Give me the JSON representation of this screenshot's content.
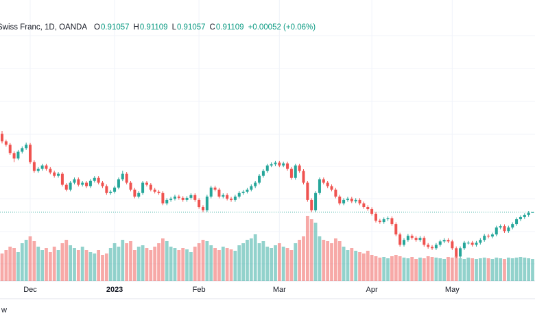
{
  "chart_data": {
    "type": "candlestick",
    "title": "Swiss Franc, 1D, OANDA",
    "header": [
      {
        "label": "O",
        "value": "0.91057"
      },
      {
        "label": "H",
        "value": "0.91109"
      },
      {
        "label": "L",
        "value": "0.91057"
      },
      {
        "label": "C",
        "value": "0.91109"
      }
    ],
    "change": "+0.00052 (+0.06%)",
    "footer": "w",
    "up_color": "#26a69a",
    "down_color": "#ef5350",
    "categories": [
      null,
      null,
      null,
      null,
      null,
      null,
      null,
      "Dec",
      null,
      null,
      null,
      null,
      null,
      null,
      null,
      null,
      null,
      null,
      null,
      null,
      null,
      null,
      null,
      null,
      null,
      null,
      null,
      null,
      "2023",
      null,
      null,
      null,
      null,
      null,
      null,
      null,
      null,
      null,
      null,
      null,
      null,
      null,
      null,
      null,
      null,
      null,
      null,
      null,
      null,
      "Feb",
      null,
      null,
      null,
      null,
      null,
      null,
      null,
      null,
      null,
      null,
      null,
      null,
      null,
      null,
      null,
      null,
      null,
      null,
      null,
      "Mar",
      null,
      null,
      null,
      null,
      null,
      null,
      null,
      null,
      null,
      null,
      null,
      null,
      null,
      null,
      null,
      null,
      null,
      null,
      null,
      null,
      null,
      null,
      "Apr",
      null,
      null,
      null,
      null,
      null,
      null,
      null,
      null,
      null,
      null,
      null,
      null,
      null,
      null,
      null,
      null,
      null,
      null,
      null,
      "May",
      null,
      null,
      null,
      null,
      null,
      null,
      null,
      null,
      null,
      null,
      null,
      null,
      null,
      null,
      null,
      null,
      null,
      null,
      null,
      null
    ],
    "ohlc": [
      [
        0.964,
        0.966,
        0.9575,
        0.9589
      ],
      [
        0.9589,
        0.9601,
        0.9554,
        0.9566
      ],
      [
        0.9566,
        0.9578,
        0.9498,
        0.951
      ],
      [
        0.951,
        0.9522,
        0.9449,
        0.9473
      ],
      [
        0.9473,
        0.9531,
        0.9461,
        0.9519
      ],
      [
        0.9519,
        0.9555,
        0.9507,
        0.9543
      ],
      [
        0.9543,
        0.958,
        0.9531,
        0.9566
      ],
      [
        0.9566,
        0.9578,
        0.9437,
        0.9449
      ],
      [
        0.9449,
        0.9461,
        0.9377,
        0.9389
      ],
      [
        0.9389,
        0.9415,
        0.9377,
        0.9403
      ],
      [
        0.9403,
        0.9438,
        0.9391,
        0.9426
      ],
      [
        0.9426,
        0.9438,
        0.9391,
        0.9403
      ],
      [
        0.9403,
        0.9415,
        0.9367,
        0.9379
      ],
      [
        0.9379,
        0.9391,
        0.9344,
        0.9356
      ],
      [
        0.9356,
        0.9382,
        0.9344,
        0.937
      ],
      [
        0.937,
        0.9382,
        0.9284,
        0.9296
      ],
      [
        0.9296,
        0.9308,
        0.9251,
        0.9263
      ],
      [
        0.9263,
        0.9322,
        0.9251,
        0.931
      ],
      [
        0.931,
        0.9345,
        0.9298,
        0.9333
      ],
      [
        0.9333,
        0.9345,
        0.9284,
        0.9296
      ],
      [
        0.9296,
        0.9322,
        0.9284,
        0.931
      ],
      [
        0.931,
        0.9322,
        0.9274,
        0.9286
      ],
      [
        0.9286,
        0.9335,
        0.9274,
        0.9323
      ],
      [
        0.9323,
        0.9354,
        0.9311,
        0.9342
      ],
      [
        0.9342,
        0.9354,
        0.9298,
        0.931
      ],
      [
        0.931,
        0.9322,
        0.9274,
        0.9286
      ],
      [
        0.9286,
        0.9298,
        0.9228,
        0.924
      ],
      [
        0.924,
        0.9261,
        0.9228,
        0.9249
      ],
      [
        0.9249,
        0.9289,
        0.9237,
        0.9277
      ],
      [
        0.9277,
        0.9345,
        0.9265,
        0.9333
      ],
      [
        0.9333,
        0.939,
        0.9321,
        0.937
      ],
      [
        0.937,
        0.9382,
        0.9298,
        0.931
      ],
      [
        0.931,
        0.9322,
        0.9251,
        0.9263
      ],
      [
        0.9263,
        0.9275,
        0.9204,
        0.9216
      ],
      [
        0.9216,
        0.9252,
        0.9204,
        0.924
      ],
      [
        0.924,
        0.9322,
        0.9228,
        0.931
      ],
      [
        0.931,
        0.9322,
        0.9284,
        0.9296
      ],
      [
        0.9296,
        0.9308,
        0.9251,
        0.9263
      ],
      [
        0.9263,
        0.9275,
        0.9237,
        0.9249
      ],
      [
        0.9249,
        0.9261,
        0.9228,
        0.924
      ],
      [
        0.924,
        0.9252,
        0.9158,
        0.917
      ],
      [
        0.917,
        0.9205,
        0.9158,
        0.9193
      ],
      [
        0.9193,
        0.9214,
        0.9181,
        0.9202
      ],
      [
        0.9202,
        0.9228,
        0.919,
        0.9216
      ],
      [
        0.9216,
        0.9228,
        0.9195,
        0.9207
      ],
      [
        0.9207,
        0.9219,
        0.9181,
        0.9193
      ],
      [
        0.9193,
        0.9219,
        0.9181,
        0.9207
      ],
      [
        0.9207,
        0.9238,
        0.9195,
        0.9226
      ],
      [
        0.9226,
        0.9238,
        0.9181,
        0.9193
      ],
      [
        0.9193,
        0.9205,
        0.9134,
        0.9146
      ],
      [
        0.9146,
        0.9158,
        0.9111,
        0.9123
      ],
      [
        0.9123,
        0.9228,
        0.9111,
        0.9216
      ],
      [
        0.9216,
        0.9289,
        0.9204,
        0.9277
      ],
      [
        0.9277,
        0.9289,
        0.9251,
        0.9263
      ],
      [
        0.9263,
        0.9275,
        0.9204,
        0.9216
      ],
      [
        0.9216,
        0.9238,
        0.9204,
        0.9226
      ],
      [
        0.9226,
        0.9238,
        0.919,
        0.9202
      ],
      [
        0.9202,
        0.9214,
        0.9181,
        0.9193
      ],
      [
        0.9193,
        0.9228,
        0.9181,
        0.9216
      ],
      [
        0.9216,
        0.9252,
        0.9204,
        0.924
      ],
      [
        0.924,
        0.9261,
        0.9228,
        0.9249
      ],
      [
        0.9249,
        0.9275,
        0.9237,
        0.9263
      ],
      [
        0.9263,
        0.9298,
        0.9251,
        0.9286
      ],
      [
        0.9286,
        0.9322,
        0.9274,
        0.931
      ],
      [
        0.931,
        0.9368,
        0.9298,
        0.9356
      ],
      [
        0.9356,
        0.9401,
        0.9344,
        0.9389
      ],
      [
        0.9389,
        0.9438,
        0.9377,
        0.9426
      ],
      [
        0.9426,
        0.9447,
        0.9414,
        0.9435
      ],
      [
        0.9435,
        0.9457,
        0.9423,
        0.9445
      ],
      [
        0.9445,
        0.9457,
        0.9414,
        0.9426
      ],
      [
        0.9426,
        0.9452,
        0.9414,
        0.944
      ],
      [
        0.944,
        0.9452,
        0.9391,
        0.9403
      ],
      [
        0.9403,
        0.9415,
        0.933,
        0.9342
      ],
      [
        0.9342,
        0.9438,
        0.933,
        0.9426
      ],
      [
        0.9426,
        0.9438,
        0.9377,
        0.9389
      ],
      [
        0.9389,
        0.9401,
        0.9298,
        0.931
      ],
      [
        0.931,
        0.9322,
        0.9181,
        0.9193
      ],
      [
        0.9193,
        0.9205,
        0.9111,
        0.9123
      ],
      [
        0.9123,
        0.9252,
        0.9111,
        0.924
      ],
      [
        0.924,
        0.9345,
        0.9228,
        0.9333
      ],
      [
        0.9333,
        0.9345,
        0.9298,
        0.931
      ],
      [
        0.931,
        0.9322,
        0.9274,
        0.9286
      ],
      [
        0.9286,
        0.9298,
        0.9251,
        0.9263
      ],
      [
        0.9263,
        0.9275,
        0.9204,
        0.9216
      ],
      [
        0.9216,
        0.9228,
        0.9158,
        0.917
      ],
      [
        0.917,
        0.9205,
        0.9158,
        0.9193
      ],
      [
        0.9193,
        0.9214,
        0.9181,
        0.9202
      ],
      [
        0.9202,
        0.9214,
        0.9172,
        0.9184
      ],
      [
        0.9184,
        0.9205,
        0.9172,
        0.9193
      ],
      [
        0.9193,
        0.9205,
        0.9158,
        0.917
      ],
      [
        0.917,
        0.9182,
        0.9134,
        0.9146
      ],
      [
        0.9146,
        0.9158,
        0.912,
        0.9132
      ],
      [
        0.9132,
        0.9144,
        0.9088,
        0.91
      ],
      [
        0.91,
        0.9112,
        0.9041,
        0.9053
      ],
      [
        0.9053,
        0.9065,
        0.9032,
        0.9044
      ],
      [
        0.9044,
        0.9075,
        0.9032,
        0.9063
      ],
      [
        0.9063,
        0.9082,
        0.9051,
        0.907
      ],
      [
        0.907,
        0.9082,
        0.9018,
        0.903
      ],
      [
        0.903,
        0.9042,
        0.8948,
        0.896
      ],
      [
        0.896,
        0.8972,
        0.8878,
        0.889
      ],
      [
        0.889,
        0.8935,
        0.8878,
        0.8923
      ],
      [
        0.8923,
        0.8963,
        0.8911,
        0.8951
      ],
      [
        0.8951,
        0.8963,
        0.8925,
        0.8937
      ],
      [
        0.8937,
        0.8949,
        0.8911,
        0.8923
      ],
      [
        0.8923,
        0.8949,
        0.8911,
        0.8937
      ],
      [
        0.8937,
        0.8949,
        0.8878,
        0.889
      ],
      [
        0.889,
        0.8902,
        0.8864,
        0.8876
      ],
      [
        0.8876,
        0.8888,
        0.8855,
        0.8867
      ],
      [
        0.8867,
        0.8902,
        0.8855,
        0.889
      ],
      [
        0.889,
        0.8925,
        0.8878,
        0.8913
      ],
      [
        0.8913,
        0.8935,
        0.8901,
        0.8923
      ],
      [
        0.8923,
        0.8935,
        0.8901,
        0.8913
      ],
      [
        0.8913,
        0.8925,
        0.8855,
        0.8867
      ],
      [
        0.8867,
        0.8879,
        0.8799,
        0.8811
      ],
      [
        0.8811,
        0.8879,
        0.8799,
        0.8867
      ],
      [
        0.8867,
        0.8916,
        0.8855,
        0.8904
      ],
      [
        0.8904,
        0.8916,
        0.8892,
        0.8904
      ],
      [
        0.8904,
        0.8916,
        0.8878,
        0.889
      ],
      [
        0.889,
        0.8916,
        0.8878,
        0.8904
      ],
      [
        0.8904,
        0.8935,
        0.8892,
        0.8923
      ],
      [
        0.8923,
        0.8963,
        0.8911,
        0.8951
      ],
      [
        0.8951,
        0.8963,
        0.8934,
        0.8946
      ],
      [
        0.8946,
        0.8972,
        0.8934,
        0.896
      ],
      [
        0.896,
        0.9019,
        0.8948,
        0.9007
      ],
      [
        0.9007,
        0.9028,
        0.8995,
        0.9016
      ],
      [
        0.9016,
        0.9028,
        0.8971,
        0.8983
      ],
      [
        0.8983,
        0.9019,
        0.8971,
        0.9007
      ],
      [
        0.9007,
        0.9042,
        0.8995,
        0.903
      ],
      [
        0.903,
        0.9075,
        0.9018,
        0.9063
      ],
      [
        0.9063,
        0.9089,
        0.9051,
        0.9077
      ],
      [
        0.9077,
        0.9103,
        0.9065,
        0.9091
      ],
      [
        0.9091,
        0.9118,
        0.9079,
        0.9106
      ],
      [
        0.91057,
        0.91109,
        0.91057,
        0.91109
      ]
    ],
    "volume": [
      40,
      45,
      50,
      48,
      42,
      55,
      60,
      65,
      58,
      50,
      45,
      48,
      42,
      50,
      45,
      55,
      60,
      52,
      48,
      45,
      50,
      45,
      42,
      40,
      45,
      38,
      40,
      48,
      55,
      50,
      60,
      55,
      58,
      45,
      50,
      52,
      48,
      45,
      50,
      55,
      62,
      58,
      50,
      48,
      45,
      48,
      46,
      42,
      50,
      55,
      60,
      58,
      52,
      48,
      45,
      50,
      48,
      46,
      44,
      52,
      55,
      60,
      62,
      68,
      55,
      58,
      50,
      48,
      52,
      55,
      50,
      48,
      45,
      55,
      60,
      65,
      95,
      90,
      85,
      65,
      60,
      58,
      55,
      62,
      58,
      50,
      45,
      48,
      44,
      42,
      40,
      44,
      38,
      36,
      34,
      35,
      33,
      36,
      38,
      36,
      34,
      33,
      35,
      32,
      34,
      33,
      36,
      35,
      34,
      33,
      32,
      35,
      34,
      36,
      33,
      32,
      34,
      33,
      32,
      33,
      34,
      33,
      32,
      34,
      33,
      32,
      34,
      33,
      34,
      35,
      34,
      33,
      32
    ]
  }
}
